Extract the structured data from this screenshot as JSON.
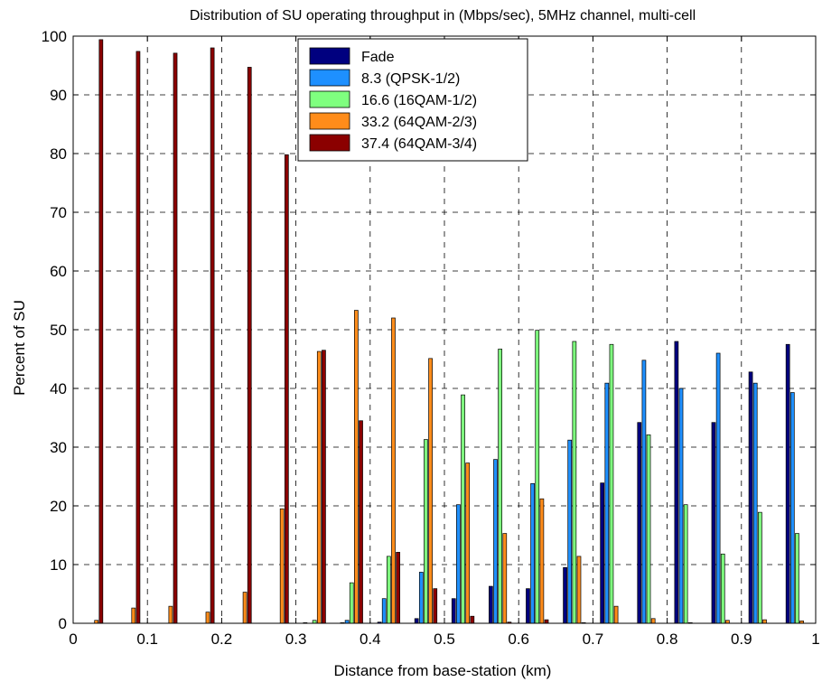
{
  "chart_data": {
    "type": "bar",
    "title": "Distribution of SU operating throughput in (Mbps/sec), 5MHz channel, multi-cell",
    "xlabel": "Distance from base-station (km)",
    "ylabel": "Percent of SU",
    "xlim": [
      0,
      1
    ],
    "ylim": [
      0,
      100
    ],
    "xticks": [
      "0",
      "0.1",
      "0.2",
      "0.3",
      "0.4",
      "0.5",
      "0.6",
      "0.7",
      "0.8",
      "0.9",
      "1"
    ],
    "yticks": [
      "0",
      "10",
      "20",
      "30",
      "40",
      "50",
      "60",
      "70",
      "80",
      "90",
      "100"
    ],
    "grid": true,
    "legend_position": "top-center",
    "categories": [
      0.025,
      0.075,
      0.125,
      0.175,
      0.225,
      0.275,
      0.325,
      0.375,
      0.425,
      0.475,
      0.525,
      0.575,
      0.625,
      0.675,
      0.725,
      0.775,
      0.825,
      0.875,
      0.925,
      0.975
    ],
    "series": [
      {
        "name": "Fade",
        "color": "#00007f",
        "values": [
          0,
          0,
          0,
          0,
          0,
          0,
          0.1,
          0.1,
          0.2,
          0.8,
          4.2,
          6.3,
          5.9,
          9.5,
          23.9,
          34.2,
          48.0,
          34.2,
          42.8,
          47.5
        ]
      },
      {
        "name": "8.3 (QPSK-1/2)",
        "color": "#1e90ff",
        "values": [
          0,
          0,
          0,
          0,
          0,
          0,
          0,
          0.5,
          4.2,
          8.7,
          20.2,
          27.9,
          23.8,
          31.2,
          40.9,
          44.8,
          40.0,
          46.0,
          40.9,
          39.3
        ]
      },
      {
        "name": "16.6 (16QAM-1/2)",
        "color": "#7fff7f",
        "values": [
          0,
          0,
          0,
          0,
          0,
          0,
          0.5,
          6.9,
          11.4,
          31.3,
          38.9,
          46.7,
          49.9,
          48.0,
          47.5,
          32.1,
          20.2,
          11.8,
          18.9,
          15.3
        ]
      },
      {
        "name": "33.2 (64QAM-2/3)",
        "color": "#ff8c1a",
        "values": [
          0.5,
          2.6,
          2.9,
          1.9,
          5.3,
          19.5,
          46.3,
          53.3,
          52.0,
          45.1,
          27.3,
          15.3,
          21.2,
          11.4,
          2.9,
          0.8,
          0.1,
          0.5,
          0.6,
          0.4
        ]
      },
      {
        "name": "37.4 (64QAM-3/4)",
        "color": "#8b0000",
        "values": [
          99.4,
          97.4,
          97.1,
          98.0,
          94.7,
          79.8,
          46.5,
          34.5,
          12.1,
          5.9,
          1.2,
          0.2,
          0.6,
          0.1,
          0,
          0,
          0,
          0,
          0,
          0
        ]
      }
    ]
  }
}
